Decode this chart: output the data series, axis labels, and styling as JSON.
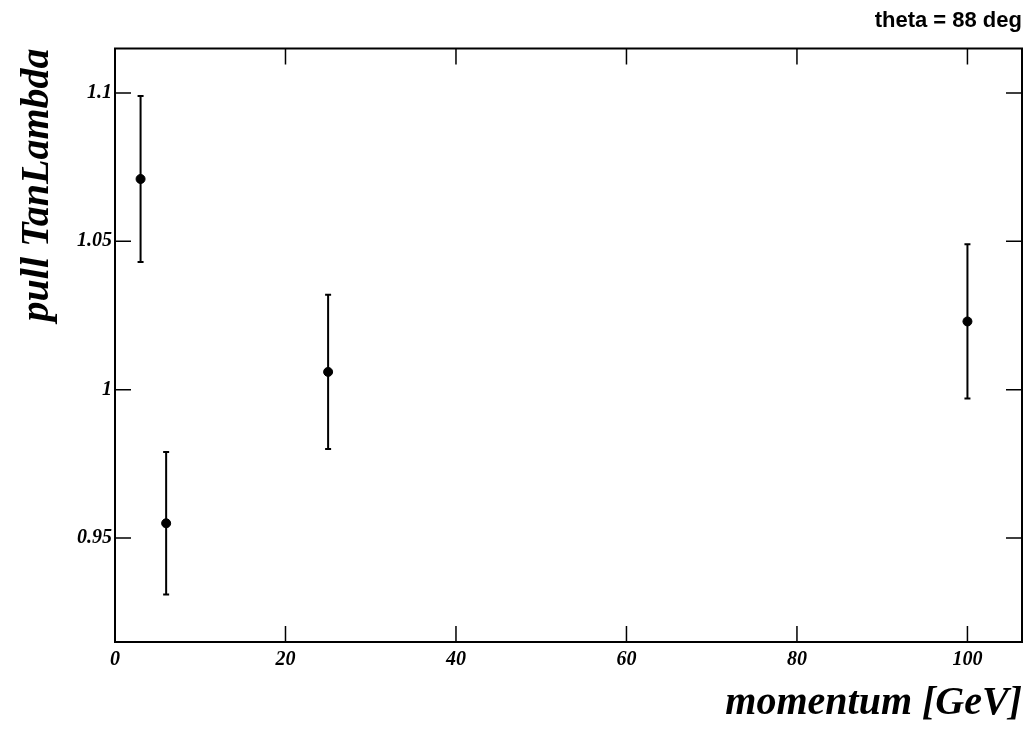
{
  "chart_data": {
    "type": "scatter",
    "title": "theta = 88 deg",
    "xlabel": "momentum [GeV]",
    "ylabel": "pull TanLambda",
    "x": [
      3,
      6,
      25,
      100
    ],
    "values": [
      1.071,
      0.955,
      1.006,
      1.023
    ],
    "errors": [
      0.028,
      0.024,
      0.026,
      0.026
    ],
    "color": "#000000",
    "marker": "circle",
    "xlim": [
      0,
      106.4
    ],
    "xticks": [
      0,
      20,
      40,
      60,
      80,
      100
    ],
    "ylim": [
      0.915,
      1.115
    ],
    "yticks": [
      0.95,
      {
        "value": 1,
        "label": "1"
      },
      1.05,
      1.1
    ],
    "grid": false,
    "legend": false
  }
}
